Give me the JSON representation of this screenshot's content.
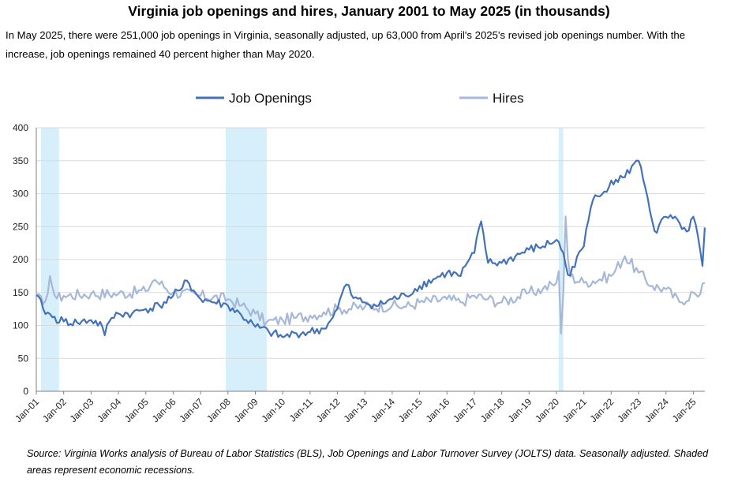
{
  "title": "Virginia job openings and hires, January 2001 to May 2025 (in thousands)",
  "subtitle": "In May 2025, there were 251,000 job openings in Virginia, seasonally adjusted, up 63,000 from April's  2025's revised job openings number. With the increase, job openings remained 40 percent higher than May 2020.",
  "source": "Source: Virginia Works analysis of Bureau of Labor Statistics (BLS), Job Openings and Labor Turnover Survey (JOLTS) data. Seasonally adjusted.  Shaded areas represent economic recessions.",
  "colors": {
    "job_openings": "#4472b8",
    "hires": "#a6b8d8",
    "recession": "#d6effa",
    "grid": "#d9d9d9"
  },
  "chart_data": {
    "type": "line",
    "x_start": "2001-01",
    "x_end": "2025-05",
    "ylim": [
      0,
      400
    ],
    "yticks": [
      0,
      50,
      100,
      150,
      200,
      250,
      300,
      350,
      400
    ],
    "xtick_labels": [
      "Jan-01",
      "Jan-02",
      "Jan-03",
      "Jan-04",
      "Jan-05",
      "Jan-06",
      "Jan-07",
      "Jan-08",
      "Jan-09",
      "Jan-10",
      "Jan-11",
      "Jan-12",
      "Jan-13",
      "Jan-14",
      "Jan-15",
      "Jan-16",
      "Jan-17",
      "Jan-18",
      "Jan-19",
      "Jan-20",
      "Jan-21",
      "Jan-22",
      "Jan-23",
      "Jan-24",
      "Jan-25"
    ],
    "legend": [
      "Job Openings",
      "Hires"
    ],
    "legend_position": "top",
    "recessions": [
      {
        "start": 2001.17,
        "end": 2001.83
      },
      {
        "start": 2007.92,
        "end": 2009.42
      },
      {
        "start": 2020.08,
        "end": 2020.25
      }
    ],
    "series": [
      {
        "name": "Job Openings",
        "anchors": [
          [
            2001.0,
            146
          ],
          [
            2001.25,
            125
          ],
          [
            2001.6,
            112
          ],
          [
            2002.0,
            106
          ],
          [
            2002.5,
            104
          ],
          [
            2003.0,
            108
          ],
          [
            2003.4,
            100
          ],
          [
            2003.5,
            85
          ],
          [
            2003.7,
            110
          ],
          [
            2004.0,
            118
          ],
          [
            2004.5,
            118
          ],
          [
            2005.0,
            125
          ],
          [
            2005.5,
            130
          ],
          [
            2006.0,
            145
          ],
          [
            2006.3,
            155
          ],
          [
            2006.5,
            168
          ],
          [
            2006.8,
            150
          ],
          [
            2007.0,
            140
          ],
          [
            2007.5,
            135
          ],
          [
            2008.0,
            130
          ],
          [
            2008.5,
            115
          ],
          [
            2009.0,
            98
          ],
          [
            2009.5,
            90
          ],
          [
            2010.0,
            82
          ],
          [
            2010.5,
            88
          ],
          [
            2011.0,
            90
          ],
          [
            2011.5,
            95
          ],
          [
            2011.8,
            110
          ],
          [
            2012.0,
            125
          ],
          [
            2012.3,
            165
          ],
          [
            2012.6,
            140
          ],
          [
            2013.0,
            135
          ],
          [
            2013.5,
            130
          ],
          [
            2014.0,
            140
          ],
          [
            2014.5,
            145
          ],
          [
            2015.0,
            160
          ],
          [
            2015.5,
            170
          ],
          [
            2016.0,
            180
          ],
          [
            2016.5,
            175
          ],
          [
            2016.8,
            200
          ],
          [
            2017.0,
            210
          ],
          [
            2017.25,
            258
          ],
          [
            2017.5,
            195
          ],
          [
            2018.0,
            195
          ],
          [
            2018.5,
            205
          ],
          [
            2019.0,
            215
          ],
          [
            2019.5,
            220
          ],
          [
            2020.0,
            230
          ],
          [
            2020.25,
            210
          ],
          [
            2020.45,
            170
          ],
          [
            2020.8,
            210
          ],
          [
            2021.0,
            220
          ],
          [
            2021.3,
            290
          ],
          [
            2021.7,
            300
          ],
          [
            2022.0,
            320
          ],
          [
            2022.5,
            325
          ],
          [
            2022.8,
            345
          ],
          [
            2023.0,
            350
          ],
          [
            2023.3,
            300
          ],
          [
            2023.6,
            240
          ],
          [
            2024.0,
            265
          ],
          [
            2024.5,
            255
          ],
          [
            2024.8,
            240
          ],
          [
            2025.0,
            265
          ],
          [
            2025.2,
            230
          ],
          [
            2025.33,
            188
          ],
          [
            2025.42,
            251
          ]
        ],
        "noise_amp": 7
      },
      {
        "name": "Hires",
        "anchors": [
          [
            2001.0,
            145
          ],
          [
            2001.3,
            130
          ],
          [
            2001.5,
            175
          ],
          [
            2001.7,
            140
          ],
          [
            2002.0,
            145
          ],
          [
            2003.0,
            148
          ],
          [
            2004.0,
            148
          ],
          [
            2005.0,
            152
          ],
          [
            2005.3,
            170
          ],
          [
            2006.0,
            150
          ],
          [
            2007.0,
            145
          ],
          [
            2008.0,
            140
          ],
          [
            2008.5,
            130
          ],
          [
            2009.0,
            118
          ],
          [
            2009.4,
            105
          ],
          [
            2010.0,
            108
          ],
          [
            2010.5,
            112
          ],
          [
            2011.0,
            115
          ],
          [
            2011.5,
            120
          ],
          [
            2012.0,
            125
          ],
          [
            2013.0,
            128
          ],
          [
            2014.0,
            130
          ],
          [
            2014.5,
            128
          ],
          [
            2015.0,
            135
          ],
          [
            2016.0,
            140
          ],
          [
            2016.5,
            135
          ],
          [
            2017.0,
            145
          ],
          [
            2017.5,
            140
          ],
          [
            2018.0,
            135
          ],
          [
            2019.0,
            150
          ],
          [
            2019.5,
            155
          ],
          [
            2020.0,
            165
          ],
          [
            2020.12,
            190
          ],
          [
            2020.17,
            80
          ],
          [
            2020.25,
            150
          ],
          [
            2020.33,
            268
          ],
          [
            2020.45,
            175
          ],
          [
            2021.0,
            165
          ],
          [
            2022.0,
            175
          ],
          [
            2022.5,
            205
          ],
          [
            2023.0,
            180
          ],
          [
            2023.5,
            160
          ],
          [
            2024.0,
            155
          ],
          [
            2024.5,
            135
          ],
          [
            2025.0,
            150
          ],
          [
            2025.2,
            142
          ],
          [
            2025.42,
            165
          ]
        ],
        "noise_amp": 9
      }
    ]
  }
}
